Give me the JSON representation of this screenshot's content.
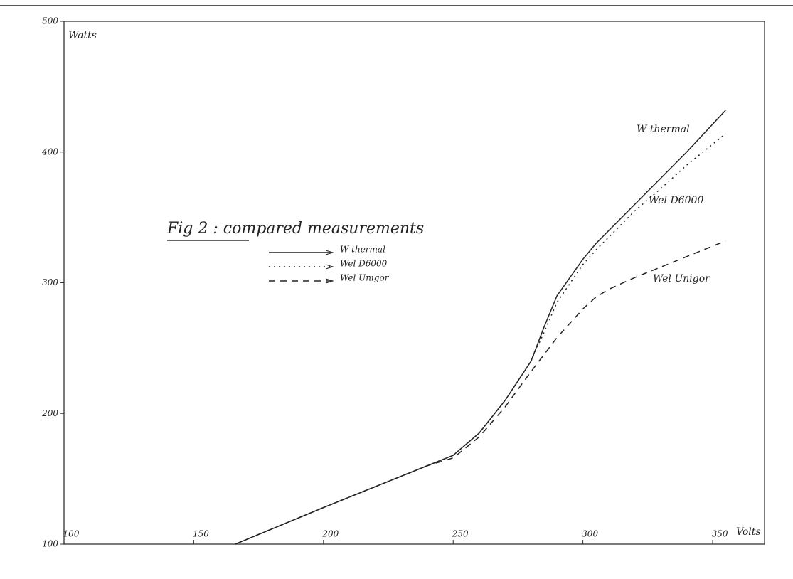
{
  "chart_data": {
    "type": "line",
    "title": "Fig 2 : compared measurements",
    "x_label": "Volts",
    "y_label": "Watts",
    "x": [
      166,
      200,
      240,
      250,
      260,
      270,
      280,
      285,
      290,
      300,
      305,
      310,
      320,
      330,
      340,
      355
    ],
    "series": [
      {
        "name": "W thermal",
        "color": "#222222",
        "style": "solid",
        "values": [
          100,
          128,
          160,
          168,
          185,
          210,
          240,
          266,
          290,
          318,
          330,
          340,
          360,
          380,
          400,
          432
        ]
      },
      {
        "name": "Wel D6000",
        "color": "#222222",
        "style": "dotted",
        "values": [
          100,
          128,
          160,
          168,
          185,
          210,
          240,
          262,
          285,
          314,
          325,
          335,
          355,
          372,
          390,
          414
        ]
      },
      {
        "name": "Wel Unigor",
        "color": "#222222",
        "style": "dashed",
        "values": [
          100,
          128,
          160,
          166,
          182,
          205,
          232,
          245,
          258,
          280,
          289,
          295,
          304,
          312,
          320,
          332
        ]
      }
    ],
    "xlim": [
      100,
      370
    ],
    "xticks": [
      100,
      150,
      200,
      250,
      300,
      350
    ],
    "ylim": [
      100,
      500
    ],
    "yticks": [
      100,
      200,
      300,
      400,
      500
    ]
  }
}
